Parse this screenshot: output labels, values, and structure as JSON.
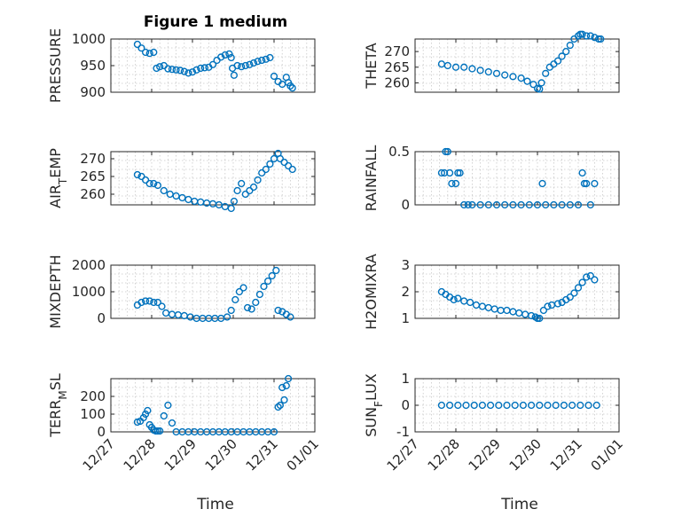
{
  "figure": {
    "title": "Figure 1 medium",
    "xlabel": "Time",
    "x_ticks": [
      "12/27",
      "12/28",
      "12/29",
      "12/30",
      "12/31",
      "01/01"
    ],
    "marker_color": "#0072bd"
  },
  "chart_data": [
    {
      "type": "scatter",
      "ylabel": "PRESSURE",
      "yticks": [
        900,
        950,
        1000
      ],
      "ylim": [
        900,
        1000
      ],
      "xlim": [
        "12/27",
        "01/01"
      ],
      "grid": true,
      "marker": "circle",
      "x": [
        27.65,
        27.75,
        27.85,
        27.95,
        28.05,
        28.12,
        28.2,
        28.3,
        28.4,
        28.5,
        28.6,
        28.7,
        28.8,
        28.9,
        29.0,
        29.1,
        29.2,
        29.3,
        29.4,
        29.5,
        29.6,
        29.7,
        29.8,
        29.9,
        29.95,
        29.98,
        30.02,
        30.1,
        30.2,
        30.3,
        30.4,
        30.5,
        30.6,
        30.7,
        30.8,
        30.9,
        31.0,
        31.1,
        31.2,
        31.3,
        31.35,
        31.4,
        31.45
      ],
      "values": [
        990,
        983,
        975,
        973,
        975,
        945,
        948,
        950,
        944,
        943,
        942,
        941,
        939,
        936,
        938,
        942,
        945,
        946,
        947,
        952,
        960,
        966,
        970,
        972,
        965,
        945,
        932,
        950,
        948,
        950,
        952,
        955,
        958,
        960,
        962,
        965,
        930,
        920,
        915,
        928,
        918,
        912,
        908
      ]
    },
    {
      "type": "scatter",
      "ylabel": "THETA",
      "yticks": [
        260,
        265,
        270
      ],
      "ylim": [
        257,
        274
      ],
      "xlim": [
        "12/27",
        "01/01"
      ],
      "grid": true,
      "marker": "circle",
      "x": [
        27.65,
        27.8,
        28.0,
        28.2,
        28.4,
        28.6,
        28.8,
        29.0,
        29.2,
        29.4,
        29.6,
        29.75,
        29.9,
        30.0,
        30.05,
        30.1,
        30.2,
        30.3,
        30.4,
        30.5,
        30.6,
        30.7,
        30.8,
        30.9,
        31.0,
        31.05,
        31.1,
        31.2,
        31.3,
        31.4,
        31.5,
        31.55
      ],
      "values": [
        266,
        265.5,
        265,
        265,
        264.5,
        264,
        263.5,
        263,
        262.5,
        262,
        261.5,
        260.5,
        259.5,
        258.2,
        258,
        260,
        263,
        265,
        266,
        267,
        268.5,
        270,
        272,
        274,
        275,
        275.5,
        275.5,
        275,
        275,
        274.5,
        274,
        274
      ]
    },
    {
      "type": "scatter",
      "ylabel": "AIR_TEMP",
      "ylabel_main": "AIR",
      "ylabel_sub": "T",
      "ylabel_rest": "EMP",
      "yticks": [
        260,
        265,
        270
      ],
      "ylim": [
        257,
        272
      ],
      "xlim": [
        "12/27",
        "01/01"
      ],
      "grid": true,
      "marker": "circle",
      "x": [
        27.65,
        27.75,
        27.85,
        27.95,
        28.05,
        28.15,
        28.3,
        28.45,
        28.6,
        28.75,
        28.9,
        29.05,
        29.2,
        29.35,
        29.5,
        29.65,
        29.8,
        29.95,
        30.02,
        30.1,
        30.2,
        30.3,
        30.4,
        30.5,
        30.6,
        30.7,
        30.8,
        30.9,
        31.0,
        31.1,
        31.15,
        31.25,
        31.35,
        31.45
      ],
      "values": [
        265.5,
        265,
        264,
        263,
        263,
        262.5,
        261,
        260,
        259.5,
        259,
        258.5,
        258,
        257.8,
        257.5,
        257.3,
        257,
        256.5,
        256,
        258,
        261,
        263,
        260,
        261,
        262,
        264,
        266,
        267,
        268.5,
        270,
        271.5,
        270,
        269,
        268,
        267
      ]
    },
    {
      "type": "scatter",
      "ylabel": "RAINFALL",
      "yticks": [
        0,
        0.5
      ],
      "ylim": [
        0,
        0.5
      ],
      "xlim": [
        "12/27",
        "01/01"
      ],
      "grid": true,
      "marker": "circle",
      "x": [
        27.65,
        27.72,
        27.75,
        27.8,
        27.85,
        27.9,
        28.0,
        28.05,
        28.1,
        28.2,
        28.3,
        28.4,
        28.6,
        28.8,
        29.0,
        29.2,
        29.4,
        29.6,
        29.8,
        30.0,
        30.12,
        30.2,
        30.4,
        30.6,
        30.8,
        31.0,
        31.1,
        31.15,
        31.2,
        31.3,
        31.4
      ],
      "values": [
        0.3,
        0.3,
        0.5,
        0.5,
        0.3,
        0.2,
        0.2,
        0.3,
        0.3,
        0,
        0,
        0,
        0,
        0,
        0,
        0,
        0,
        0,
        0,
        0,
        0.2,
        0,
        0,
        0,
        0,
        0,
        0.3,
        0.2,
        0.2,
        0,
        0.2
      ]
    },
    {
      "type": "scatter",
      "ylabel": "MIXDEPTH",
      "yticks": [
        0,
        1000,
        2000
      ],
      "ylim": [
        0,
        2000
      ],
      "xlim": [
        "12/27",
        "01/01"
      ],
      "grid": true,
      "marker": "circle",
      "x": [
        27.65,
        27.75,
        27.85,
        27.95,
        28.05,
        28.15,
        28.25,
        28.35,
        28.5,
        28.65,
        28.8,
        28.95,
        29.1,
        29.25,
        29.4,
        29.55,
        29.7,
        29.85,
        29.95,
        30.05,
        30.15,
        30.25,
        30.35,
        30.45,
        30.55,
        30.65,
        30.75,
        30.85,
        30.95,
        31.05,
        31.1,
        31.2,
        31.3,
        31.4
      ],
      "values": [
        500,
        600,
        650,
        650,
        600,
        600,
        450,
        200,
        150,
        130,
        100,
        50,
        0,
        0,
        0,
        0,
        0,
        50,
        300,
        700,
        1000,
        1150,
        400,
        350,
        600,
        900,
        1200,
        1400,
        1600,
        1800,
        300,
        250,
        150,
        50
      ]
    },
    {
      "type": "scatter",
      "ylabel": "H2OMIXRA",
      "yticks": [
        1,
        2,
        3
      ],
      "ylim": [
        1,
        3
      ],
      "xlim": [
        "12/27",
        "01/01"
      ],
      "grid": true,
      "marker": "circle",
      "x": [
        27.65,
        27.75,
        27.85,
        27.95,
        28.05,
        28.2,
        28.35,
        28.5,
        28.65,
        28.8,
        28.95,
        29.1,
        29.25,
        29.4,
        29.55,
        29.7,
        29.85,
        29.95,
        30.0,
        30.05,
        30.15,
        30.25,
        30.35,
        30.5,
        30.6,
        30.7,
        30.8,
        30.9,
        31.0,
        31.1,
        31.2,
        31.3,
        31.4
      ],
      "values": [
        2.0,
        1.9,
        1.8,
        1.7,
        1.75,
        1.65,
        1.6,
        1.5,
        1.45,
        1.4,
        1.35,
        1.3,
        1.3,
        1.25,
        1.2,
        1.15,
        1.1,
        1.05,
        1.0,
        1.0,
        1.3,
        1.45,
        1.5,
        1.55,
        1.6,
        1.7,
        1.8,
        1.95,
        2.15,
        2.35,
        2.55,
        2.6,
        2.45
      ]
    },
    {
      "type": "scatter",
      "ylabel": "TERR_MSL",
      "ylabel_main": "TERR",
      "ylabel_sub": "M",
      "ylabel_rest": "SL",
      "yticks": [
        0,
        100,
        200
      ],
      "ylim": [
        0,
        300
      ],
      "xlim": [
        "12/27",
        "01/01"
      ],
      "grid": true,
      "marker": "circle",
      "x": [
        27.65,
        27.72,
        27.8,
        27.85,
        27.9,
        27.95,
        28.0,
        28.05,
        28.1,
        28.15,
        28.2,
        28.3,
        28.4,
        28.5,
        28.6,
        28.75,
        28.9,
        29.05,
        29.2,
        29.35,
        29.5,
        29.65,
        29.8,
        29.95,
        30.1,
        30.25,
        30.4,
        30.55,
        30.7,
        30.85,
        31.0,
        31.1,
        31.15,
        31.2,
        31.25,
        31.3,
        31.35
      ],
      "values": [
        55,
        60,
        80,
        100,
        120,
        40,
        25,
        10,
        5,
        5,
        5,
        90,
        150,
        50,
        0,
        0,
        0,
        0,
        0,
        0,
        0,
        0,
        0,
        0,
        0,
        0,
        0,
        0,
        0,
        0,
        0,
        140,
        150,
        250,
        180,
        260,
        300
      ]
    },
    {
      "type": "scatter",
      "ylabel": "SUN_FLUX",
      "ylabel_main": "SUN",
      "ylabel_sub": "F",
      "ylabel_rest": "LUX",
      "yticks": [
        -1,
        0,
        1
      ],
      "ylim": [
        -1,
        1
      ],
      "xlim": [
        "12/27",
        "01/01"
      ],
      "grid": true,
      "marker": "circle",
      "x": [
        27.65,
        27.85,
        28.05,
        28.25,
        28.45,
        28.65,
        28.85,
        29.05,
        29.25,
        29.45,
        29.65,
        29.85,
        30.05,
        30.25,
        30.45,
        30.65,
        30.85,
        31.05,
        31.25,
        31.45
      ],
      "values": [
        0,
        0,
        0,
        0,
        0,
        0,
        0,
        0,
        0,
        0,
        0,
        0,
        0,
        0,
        0,
        0,
        0,
        0,
        0,
        0
      ]
    }
  ]
}
